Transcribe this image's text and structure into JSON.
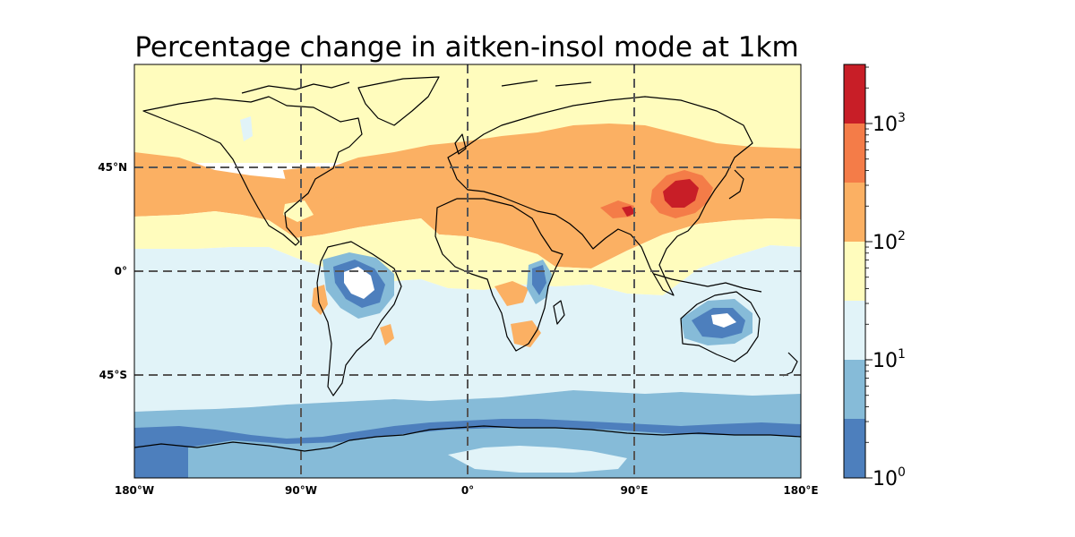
{
  "map": {
    "title": "Percentage change in aitken-insol mode at 1km",
    "projection": "PlateCarree",
    "extent": {
      "lon": [
        -180,
        180
      ],
      "lat": [
        -90,
        90
      ]
    },
    "gridlines": {
      "style": "dashed",
      "color": "#555555",
      "lons": [
        -90,
        0,
        90
      ],
      "lats": [
        -45,
        0,
        45
      ]
    },
    "lon_ticks": [
      {
        "value": -180,
        "label": "180°W"
      },
      {
        "value": -90,
        "label": "90°W"
      },
      {
        "value": 0,
        "label": "0°"
      },
      {
        "value": 90,
        "label": "90°E"
      },
      {
        "value": 180,
        "label": "180°E"
      }
    ],
    "lat_ticks": [
      {
        "value": 45,
        "label": "45°N"
      },
      {
        "value": 0,
        "label": "0°"
      },
      {
        "value": -45,
        "label": "45°S"
      }
    ]
  },
  "colorbar": {
    "scale": "log",
    "range": [
      1,
      3162
    ],
    "level_colors": [
      "#4d7fbd",
      "#86bbd8",
      "#e1f3f8",
      "#fffcbd",
      "#fbb063",
      "#f47c48",
      "#c81e27"
    ],
    "major_ticks": [
      {
        "value": 1,
        "base": "10",
        "exp": "0"
      },
      {
        "value": 10,
        "base": "10",
        "exp": "1"
      },
      {
        "value": 100,
        "base": "10",
        "exp": "2"
      },
      {
        "value": 1000,
        "base": "10",
        "exp": "3"
      }
    ]
  },
  "colors": {
    "land_outline": "#000000",
    "under": "#ffffff"
  }
}
